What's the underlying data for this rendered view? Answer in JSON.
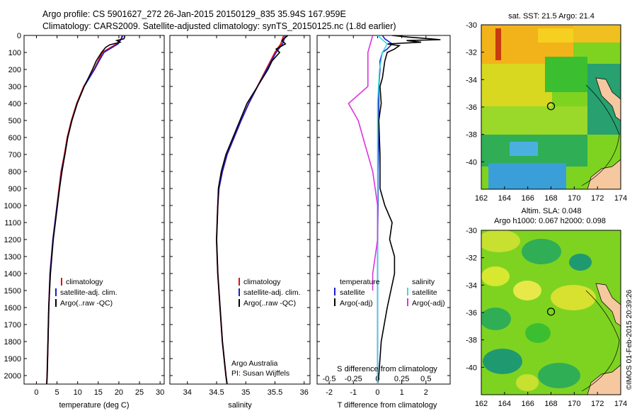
{
  "header": {
    "line1": "Argo profile: CS 5901627_272 26-Jan-2015 20150129_835 35.94S 167.959E",
    "line2": "Climatology: CARS2009. Satellite-adjusted climatology: synTS_20150125.nc (1.8d earlier)"
  },
  "colors": {
    "climatology": "#dd1111",
    "satellite": "#1a1acc",
    "argo": "#000000",
    "sal_satellite": "#33dddd",
    "sal_argo": "#dd33dd"
  },
  "credit": "©IMOS 01-Feb-2015 20:39:26",
  "map_top": {
    "title": "sat. SST: 21.5 Argo: 21.4"
  },
  "map_bottom": {
    "title1": "Altim. SLA: 0.048",
    "title2": "Argo h1000: 0.067 h2000: 0.098"
  },
  "legend_profile": {
    "items": [
      "climatology",
      "satellite-adj. clim.",
      "Argo(..raw -QC)"
    ]
  },
  "legend_diff": {
    "temp_header": "temperature",
    "sal_header": "salinity",
    "temp_items": [
      "satellite",
      "Argo(-adj)"
    ],
    "sal_items": [
      "satellite",
      "Argo(-adj)"
    ]
  },
  "argo_credit": {
    "line1": "Argo Australia",
    "line2": "PI: Susan Wijffels"
  },
  "chart_data": [
    {
      "type": "line",
      "xlabel": "temperature (deg C)",
      "ylabel": "",
      "xlim": [
        -3,
        31
      ],
      "ylim": [
        2050,
        0
      ],
      "xticks": [
        0,
        5,
        10,
        15,
        20,
        25,
        30
      ],
      "yticks": [
        0,
        100,
        200,
        300,
        400,
        500,
        600,
        700,
        800,
        900,
        1000,
        1100,
        1200,
        1300,
        1400,
        1500,
        1600,
        1700,
        1800,
        1900,
        2000
      ],
      "series": [
        {
          "name": "climatology",
          "depth": [
            0,
            20,
            50,
            100,
            150,
            200,
            300,
            400,
            500,
            600,
            700,
            800,
            900,
            1000,
            1200,
            1400,
            1600,
            1800,
            2000,
            2050
          ],
          "values": [
            20.8,
            20.6,
            19.5,
            16.0,
            15.0,
            14.0,
            11.5,
            9.8,
            8.5,
            7.5,
            6.8,
            6.0,
            5.5,
            5.0,
            4.0,
            3.3,
            3.0,
            2.8,
            2.6,
            2.5
          ]
        },
        {
          "name": "satellite-adj. clim.",
          "depth": [
            0,
            20,
            50,
            100,
            150,
            200,
            300,
            400,
            500,
            600,
            700,
            800,
            900,
            1000,
            1200,
            1400,
            1600,
            1800,
            2000,
            2050
          ],
          "values": [
            21.0,
            20.6,
            19.8,
            16.4,
            15.2,
            14.1,
            11.6,
            9.9,
            8.6,
            7.6,
            6.9,
            6.1,
            5.6,
            5.0,
            4.0,
            3.3,
            3.0,
            2.8,
            2.6,
            2.5
          ]
        },
        {
          "name": "Argo(..raw -QC)",
          "depth": [
            0,
            10,
            20,
            30,
            40,
            55,
            70,
            100,
            150,
            200,
            300,
            400,
            500,
            600,
            700,
            800,
            900,
            1000,
            1200,
            1400,
            1600,
            1800,
            2000,
            2050
          ],
          "values": [
            21.4,
            21.4,
            21.2,
            19.5,
            20.3,
            17.8,
            16.8,
            15.8,
            14.5,
            13.6,
            11.6,
            9.9,
            8.6,
            7.6,
            6.9,
            6.2,
            5.6,
            5.1,
            4.1,
            3.4,
            3.0,
            2.8,
            2.6,
            2.5
          ]
        }
      ]
    },
    {
      "type": "line",
      "xlabel": "salinity",
      "ylabel": "",
      "xlim": [
        33.7,
        36.1
      ],
      "ylim": [
        2050,
        0
      ],
      "xticks": [
        34,
        34.5,
        35,
        35.5,
        36
      ],
      "series": [
        {
          "name": "climatology",
          "depth": [
            0,
            50,
            100,
            200,
            300,
            400,
            500,
            600,
            700,
            800,
            900,
            1000,
            1200,
            1400,
            1600,
            1800,
            2000,
            2050
          ],
          "values": [
            35.65,
            35.6,
            35.5,
            35.35,
            35.2,
            35.05,
            34.92,
            34.8,
            34.68,
            34.6,
            34.54,
            34.52,
            34.5,
            34.52,
            34.56,
            34.6,
            34.66,
            34.68
          ]
        },
        {
          "name": "satellite-adj. clim.",
          "depth": [
            0,
            50,
            100,
            200,
            300,
            400,
            500,
            600,
            700,
            800,
            900,
            1000,
            1200,
            1400,
            1600,
            1800,
            2000,
            2050
          ],
          "values": [
            35.68,
            35.63,
            35.52,
            35.36,
            35.2,
            35.05,
            34.92,
            34.8,
            34.68,
            34.6,
            34.54,
            34.52,
            34.5,
            34.52,
            34.56,
            34.6,
            34.66,
            34.68
          ]
        },
        {
          "name": "Argo(..raw -QC)",
          "depth": [
            0,
            30,
            50,
            80,
            100,
            150,
            200,
            300,
            400,
            500,
            600,
            700,
            800,
            900,
            1000,
            1200,
            1400,
            1600,
            1800,
            2000,
            2050
          ],
          "values": [
            35.72,
            35.62,
            35.68,
            35.52,
            35.58,
            35.45,
            35.38,
            35.2,
            35.02,
            34.9,
            34.78,
            34.66,
            34.58,
            34.53,
            34.52,
            34.5,
            34.52,
            34.56,
            34.6,
            34.66,
            34.68
          ]
        }
      ]
    },
    {
      "type": "line",
      "xlabel": "T difference from climatology",
      "x2label": "S difference from climatology",
      "xlim": [
        -2.5,
        3.0
      ],
      "ylim": [
        2050,
        0
      ],
      "xticks": [
        -2,
        -1,
        0,
        1,
        2
      ],
      "x2ticks": [
        -0.5,
        -0.25,
        0,
        0.25,
        0.5
      ],
      "x2tick_labels": [
        "-0.5",
        "-0.25",
        "0",
        "0.25",
        "0.5"
      ],
      "series": [
        {
          "name": "temperature satellite",
          "depth": [
            0,
            20,
            50,
            80,
            100,
            150,
            200,
            300,
            400,
            600,
            800,
            1000,
            1200,
            1400,
            1600,
            1800,
            2000,
            2050
          ],
          "values": [
            0.2,
            0.3,
            0.6,
            0.4,
            0.2,
            0.1,
            0.1,
            0.05,
            0.05,
            0.05,
            0.02,
            0.02,
            0.0,
            0.0,
            0.0,
            0.0,
            0.0,
            0.0
          ]
        },
        {
          "name": "temperature Argo(-adj)",
          "depth": [
            0,
            10,
            20,
            25,
            30,
            40,
            50,
            60,
            80,
            100,
            150,
            200,
            250,
            300,
            400,
            500,
            700,
            900,
            1000,
            1100,
            1200,
            1300,
            1400,
            1600,
            1800,
            2000,
            2050
          ],
          "values": [
            0.6,
            1.3,
            2.2,
            2.6,
            1.2,
            1.8,
            0.4,
            0.9,
            0.7,
            0.4,
            0.3,
            0.25,
            0.2,
            0.1,
            0.15,
            0.05,
            0.1,
            0.1,
            0.3,
            0.6,
            0.5,
            0.7,
            0.7,
            0.4,
            0.15,
            0.05,
            0.0
          ]
        },
        {
          "name": "salinity satellite",
          "depth": [
            0,
            50,
            100,
            200,
            400,
            600,
            1000,
            1400,
            2050
          ],
          "values": [
            0.0,
            0.1,
            0.05,
            0.02,
            0.0,
            0.0,
            0.0,
            0.0,
            0.0
          ]
        },
        {
          "name": "salinity Argo(-adj)",
          "depth": [
            0,
            100,
            200,
            300,
            400,
            500,
            600,
            800,
            1000,
            1200,
            1400,
            1500
          ],
          "values": [
            -0.05,
            -0.1,
            -0.1,
            -0.1,
            -0.3,
            -0.2,
            -0.15,
            -0.05,
            0.0,
            0.0,
            -0.05,
            -0.05
          ]
        }
      ]
    },
    {
      "type": "heatmap",
      "title": "sat. SST: 21.5 Argo: 21.4",
      "xlim": [
        162,
        174
      ],
      "ylim": [
        -42,
        -30
      ],
      "xticks": [
        162,
        164,
        166,
        168,
        170,
        172,
        174
      ],
      "yticks": [
        -30,
        -32,
        -34,
        -36,
        -38,
        -40
      ],
      "marker": {
        "lon": 168.0,
        "lat": -35.94
      }
    },
    {
      "type": "heatmap",
      "title": "Altim. SLA: 0.048",
      "subtitle": "Argo h1000: 0.067 h2000: 0.098",
      "xlim": [
        162,
        174
      ],
      "ylim": [
        -42,
        -30
      ],
      "xticks": [
        162,
        164,
        166,
        168,
        170,
        172,
        174
      ],
      "yticks": [
        -30,
        -32,
        -34,
        -36,
        -38,
        -40
      ],
      "marker": {
        "lon": 168.0,
        "lat": -35.94
      }
    }
  ]
}
